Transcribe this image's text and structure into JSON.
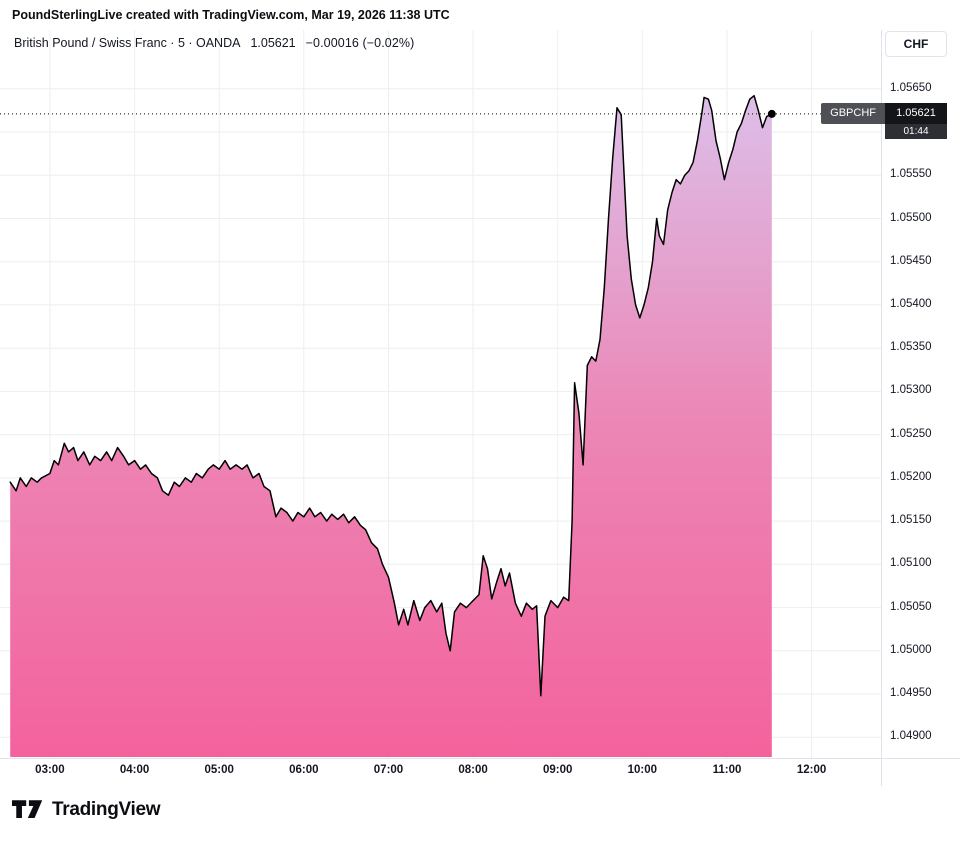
{
  "header": {
    "attribution": "PoundSterlingLive created with TradingView.com, Mar 19, 2026 11:38 UTC"
  },
  "symbol_row": {
    "title": "British Pound / Swiss Franc · 5 · OANDA",
    "price": "1.05621",
    "change": "−0.00016 (−0.02%)"
  },
  "currency_button": "CHF",
  "price_label": {
    "symbol": "GBPCHF",
    "price": "1.05621",
    "countdown": "01:44"
  },
  "footer": {
    "brand": "TradingView"
  },
  "chart_data": {
    "type": "area",
    "title": "British Pound / Swiss Franc",
    "interval": "5",
    "exchange": "OANDA",
    "current_price": 1.05621,
    "change": -0.00016,
    "change_pct": "−0.02%",
    "x_range": [
      2.41,
      12.82
    ],
    "y_range": [
      1.04876,
      1.05718
    ],
    "x_axis": {
      "labels": [
        "03:00",
        "04:00",
        "05:00",
        "06:00",
        "07:00",
        "08:00",
        "09:00",
        "10:00",
        "11:00",
        "12:00"
      ],
      "hours": [
        3,
        4,
        5,
        6,
        7,
        8,
        9,
        10,
        11,
        12
      ]
    },
    "y_axis": {
      "labels": [
        "1.05650",
        "1.05600",
        "1.05550",
        "1.05500",
        "1.05450",
        "1.05400",
        "1.05350",
        "1.05300",
        "1.05250",
        "1.05200",
        "1.05150",
        "1.05100",
        "1.05050",
        "1.05000",
        "1.04950",
        "1.04900"
      ],
      "values": [
        1.0565,
        1.056,
        1.0555,
        1.055,
        1.0545,
        1.054,
        1.0535,
        1.053,
        1.0525,
        1.052,
        1.0515,
        1.051,
        1.0505,
        1.05,
        1.0495,
        1.049
      ]
    },
    "series": [
      {
        "name": "GBPCHF",
        "points": [
          [
            2.53,
            1.05195
          ],
          [
            2.6,
            1.05185
          ],
          [
            2.65,
            1.052
          ],
          [
            2.72,
            1.0519
          ],
          [
            2.78,
            1.052
          ],
          [
            2.85,
            1.05195
          ],
          [
            2.9,
            1.052
          ],
          [
            3.0,
            1.05205
          ],
          [
            3.05,
            1.0522
          ],
          [
            3.1,
            1.05215
          ],
          [
            3.17,
            1.0524
          ],
          [
            3.22,
            1.0523
          ],
          [
            3.28,
            1.05235
          ],
          [
            3.33,
            1.0522
          ],
          [
            3.4,
            1.0523
          ],
          [
            3.47,
            1.05215
          ],
          [
            3.53,
            1.05225
          ],
          [
            3.6,
            1.0522
          ],
          [
            3.67,
            1.0523
          ],
          [
            3.73,
            1.0522
          ],
          [
            3.8,
            1.05235
          ],
          [
            3.87,
            1.05225
          ],
          [
            3.93,
            1.05215
          ],
          [
            4.0,
            1.0522
          ],
          [
            4.07,
            1.0521
          ],
          [
            4.13,
            1.05215
          ],
          [
            4.2,
            1.05205
          ],
          [
            4.27,
            1.052
          ],
          [
            4.33,
            1.05185
          ],
          [
            4.4,
            1.0518
          ],
          [
            4.47,
            1.05195
          ],
          [
            4.53,
            1.0519
          ],
          [
            4.6,
            1.052
          ],
          [
            4.67,
            1.05195
          ],
          [
            4.73,
            1.05205
          ],
          [
            4.8,
            1.052
          ],
          [
            4.87,
            1.0521
          ],
          [
            4.93,
            1.05215
          ],
          [
            5.0,
            1.0521
          ],
          [
            5.07,
            1.0522
          ],
          [
            5.13,
            1.0521
          ],
          [
            5.2,
            1.05215
          ],
          [
            5.27,
            1.0521
          ],
          [
            5.33,
            1.05215
          ],
          [
            5.4,
            1.052
          ],
          [
            5.47,
            1.05205
          ],
          [
            5.53,
            1.0519
          ],
          [
            5.6,
            1.05185
          ],
          [
            5.67,
            1.05155
          ],
          [
            5.73,
            1.05165
          ],
          [
            5.8,
            1.0516
          ],
          [
            5.87,
            1.0515
          ],
          [
            5.93,
            1.0516
          ],
          [
            6.0,
            1.05155
          ],
          [
            6.07,
            1.05165
          ],
          [
            6.13,
            1.05155
          ],
          [
            6.2,
            1.0516
          ],
          [
            6.27,
            1.0515
          ],
          [
            6.33,
            1.05158
          ],
          [
            6.4,
            1.05152
          ],
          [
            6.47,
            1.05158
          ],
          [
            6.53,
            1.05148
          ],
          [
            6.6,
            1.05155
          ],
          [
            6.67,
            1.05145
          ],
          [
            6.73,
            1.0514
          ],
          [
            6.8,
            1.05125
          ],
          [
            6.87,
            1.05118
          ],
          [
            6.93,
            1.051
          ],
          [
            7.0,
            1.05085
          ],
          [
            7.07,
            1.05055
          ],
          [
            7.12,
            1.0503
          ],
          [
            7.18,
            1.05048
          ],
          [
            7.23,
            1.0503
          ],
          [
            7.3,
            1.05058
          ],
          [
            7.37,
            1.05035
          ],
          [
            7.43,
            1.0505
          ],
          [
            7.5,
            1.05058
          ],
          [
            7.57,
            1.05045
          ],
          [
            7.63,
            1.05055
          ],
          [
            7.68,
            1.0502
          ],
          [
            7.73,
            1.05
          ],
          [
            7.78,
            1.05045
          ],
          [
            7.85,
            1.05055
          ],
          [
            7.92,
            1.0505
          ],
          [
            8.0,
            1.05058
          ],
          [
            8.07,
            1.05065
          ],
          [
            8.12,
            1.0511
          ],
          [
            8.17,
            1.05095
          ],
          [
            8.22,
            1.0506
          ],
          [
            8.28,
            1.0508
          ],
          [
            8.33,
            1.05095
          ],
          [
            8.38,
            1.05075
          ],
          [
            8.43,
            1.0509
          ],
          [
            8.5,
            1.05055
          ],
          [
            8.57,
            1.0504
          ],
          [
            8.63,
            1.05055
          ],
          [
            8.7,
            1.05048
          ],
          [
            8.75,
            1.05052
          ],
          [
            8.8,
            1.04948
          ],
          [
            8.85,
            1.0504
          ],
          [
            8.92,
            1.05058
          ],
          [
            9.0,
            1.0505
          ],
          [
            9.07,
            1.05062
          ],
          [
            9.13,
            1.05058
          ],
          [
            9.17,
            1.0515
          ],
          [
            9.2,
            1.0531
          ],
          [
            9.25,
            1.05275
          ],
          [
            9.3,
            1.05215
          ],
          [
            9.35,
            1.0533
          ],
          [
            9.4,
            1.0534
          ],
          [
            9.45,
            1.05335
          ],
          [
            9.5,
            1.0536
          ],
          [
            9.55,
            1.0542
          ],
          [
            9.6,
            1.055
          ],
          [
            9.65,
            1.0557
          ],
          [
            9.7,
            1.05628
          ],
          [
            9.75,
            1.0562
          ],
          [
            9.78,
            1.0556
          ],
          [
            9.82,
            1.0548
          ],
          [
            9.87,
            1.0543
          ],
          [
            9.92,
            1.054
          ],
          [
            9.97,
            1.05385
          ],
          [
            10.02,
            1.054
          ],
          [
            10.07,
            1.0542
          ],
          [
            10.12,
            1.0545
          ],
          [
            10.17,
            1.055
          ],
          [
            10.2,
            1.0548
          ],
          [
            10.25,
            1.0547
          ],
          [
            10.3,
            1.0551
          ],
          [
            10.35,
            1.0553
          ],
          [
            10.4,
            1.05545
          ],
          [
            10.45,
            1.0554
          ],
          [
            10.5,
            1.0555
          ],
          [
            10.55,
            1.05555
          ],
          [
            10.6,
            1.05565
          ],
          [
            10.65,
            1.0559
          ],
          [
            10.7,
            1.0562
          ],
          [
            10.73,
            1.0564
          ],
          [
            10.78,
            1.05638
          ],
          [
            10.82,
            1.05625
          ],
          [
            10.87,
            1.0559
          ],
          [
            10.92,
            1.0557
          ],
          [
            10.97,
            1.05545
          ],
          [
            11.02,
            1.05565
          ],
          [
            11.07,
            1.0558
          ],
          [
            11.12,
            1.056
          ],
          [
            11.17,
            1.0561
          ],
          [
            11.22,
            1.05625
          ],
          [
            11.27,
            1.05638
          ],
          [
            11.32,
            1.05642
          ],
          [
            11.37,
            1.05625
          ],
          [
            11.42,
            1.05605
          ],
          [
            11.47,
            1.05618
          ],
          [
            11.53,
            1.05621
          ]
        ]
      }
    ],
    "colors": {
      "line": "#000000",
      "grid": "#eceef1",
      "fill_top": "#dcbfe9",
      "fill_mid": "#ec86b5",
      "fill_bottom": "#f4629c",
      "axis_text": "#131722"
    }
  }
}
